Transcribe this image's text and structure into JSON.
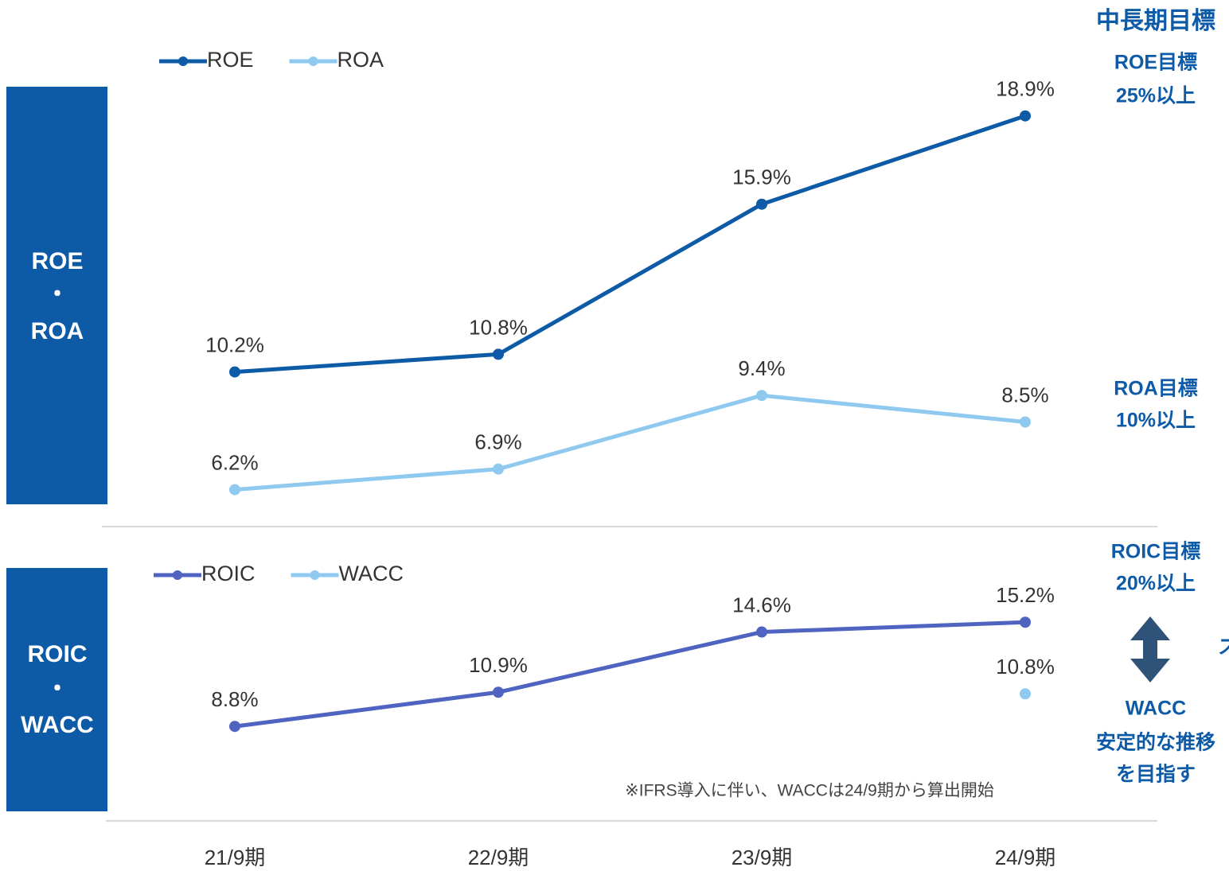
{
  "header": {
    "title": "中長期目標"
  },
  "chart_data": [
    {
      "type": "line",
      "y_label_lines": [
        "ROE",
        "・",
        "ROA"
      ],
      "series": [
        {
          "name": "ROE",
          "color": "#0d5aa7",
          "values": [
            10.2,
            10.8,
            15.9,
            18.9
          ],
          "value_labels": [
            "10.2%",
            "10.8%",
            "15.9%",
            "18.9%"
          ]
        },
        {
          "name": "ROA",
          "color": "#8fc9f0",
          "values": [
            6.2,
            6.9,
            9.4,
            8.5
          ],
          "value_labels": [
            "6.2%",
            "6.9%",
            "9.4%",
            "8.5%"
          ]
        }
      ],
      "ylim": [
        5,
        20
      ],
      "targets": [
        {
          "title": "ROE目標",
          "text": "25%以上"
        },
        {
          "title": "ROA目標",
          "text": "10%以上"
        }
      ]
    },
    {
      "type": "line",
      "y_label_lines": [
        "ROIC",
        "・",
        "WACC"
      ],
      "categories": [
        "21/9期",
        "22/9期",
        "23/9期",
        "24/9期"
      ],
      "series": [
        {
          "name": "ROIC",
          "color": "#4f63c0",
          "values": [
            8.8,
            10.9,
            14.6,
            15.2
          ],
          "value_labels": [
            "8.8%",
            "10.9%",
            "14.6%",
            "15.2%"
          ]
        },
        {
          "name": "WACC",
          "color": "#8fc9f0",
          "values": [
            null,
            null,
            null,
            10.8
          ],
          "value_labels": [
            null,
            null,
            null,
            "10.8%"
          ]
        }
      ],
      "ylim": [
        5,
        20
      ],
      "targets": [
        {
          "title": "ROIC目標",
          "text": "20%以上"
        },
        {
          "title": "WACC",
          "text": "安定的な推移",
          "text2": "を目指す"
        }
      ],
      "spread_label": "ス",
      "note": "※IFRS導入に伴い、WACCは24/9期から算出開始"
    }
  ]
}
